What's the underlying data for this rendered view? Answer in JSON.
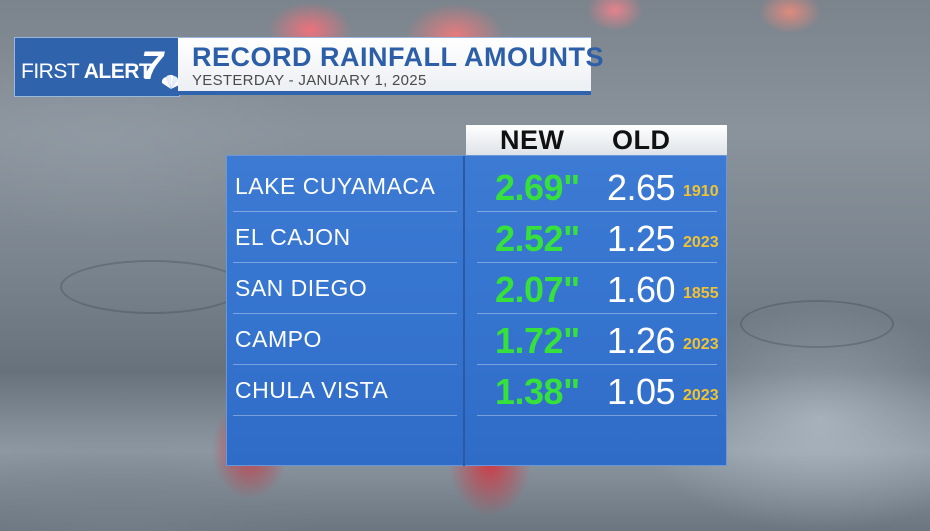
{
  "header": {
    "logo_first": "FIRST",
    "logo_alert": "ALERT",
    "logo_seven": "7",
    "title": "RECORD RAINFALL AMOUNTS",
    "subtitle": "YESTERDAY - JANUARY 1, 2025"
  },
  "table": {
    "col_new": "NEW",
    "col_old": "OLD",
    "rows": [
      {
        "location": "LAKE CUYAMACA",
        "new": "2.69\"",
        "old": "2.65",
        "old_year": "1910"
      },
      {
        "location": "EL CAJON",
        "new": "2.52\"",
        "old": "1.25",
        "old_year": "2023"
      },
      {
        "location": "SAN DIEGO",
        "new": "2.07\"",
        "old": "1.60",
        "old_year": "1855"
      },
      {
        "location": "CAMPO",
        "new": "1.72\"",
        "old": "1.26",
        "old_year": "2023"
      },
      {
        "location": "CHULA VISTA",
        "new": "1.38\"",
        "old": "1.05",
        "old_year": "2023"
      }
    ]
  },
  "colors": {
    "brand_blue": "#2f64ad",
    "new_value": "#35e13a",
    "year": "#f1c232"
  }
}
